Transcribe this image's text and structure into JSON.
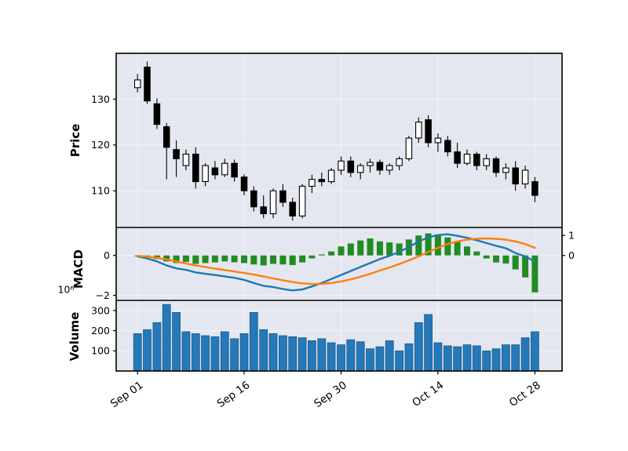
{
  "figure": {
    "bg": "#ffffff",
    "panel_bg": "#e4e7f0",
    "colors": {
      "candle_up_fill": "#ffffff",
      "candle_down_fill": "#000000",
      "candle_edge": "#000000",
      "volume_bar": "#2579b8",
      "volume_edge": "#1b5a8a",
      "hist_bar": "#238b23",
      "macd_line": "#1f77b4",
      "signal_line": "#ff7f0e",
      "grid": "#ffffff",
      "spine": "#000000",
      "text": "#000000"
    }
  },
  "x_axis": {
    "n": 42,
    "tick_indices": [
      0,
      11,
      21,
      31,
      41
    ],
    "tick_labels": [
      "Sep 01",
      "Sep 16",
      "Sep 30",
      "Oct 14",
      "Oct 28"
    ]
  },
  "chart_data": [
    {
      "type": "candlestick",
      "panel": "price",
      "ylabel": "Price",
      "ylim": [
        102,
        140
      ],
      "yticks": [
        130,
        120,
        110
      ],
      "ytick_labels": [
        "130",
        "120",
        "110"
      ],
      "dates": [
        "Sep 01",
        "Sep 02",
        "Sep 03",
        "Sep 06",
        "Sep 07",
        "Sep 08",
        "Sep 09",
        "Sep 10",
        "Sep 13",
        "Sep 14",
        "Sep 15",
        "Sep 16",
        "Sep 17",
        "Sep 20",
        "Sep 21",
        "Sep 22",
        "Sep 23",
        "Sep 24",
        "Sep 27",
        "Sep 28",
        "Sep 29",
        "Sep 30",
        "Oct 01",
        "Oct 04",
        "Oct 05",
        "Oct 06",
        "Oct 07",
        "Oct 08",
        "Oct 11",
        "Oct 12",
        "Oct 13",
        "Oct 14",
        "Oct 15",
        "Oct 18",
        "Oct 19",
        "Oct 20",
        "Oct 21",
        "Oct 22",
        "Oct 25",
        "Oct 26",
        "Oct 27",
        "Oct 28"
      ],
      "ohlc": [
        [
          132.5,
          135.5,
          131.5,
          134.2
        ],
        [
          137.0,
          138.2,
          129.0,
          129.6
        ],
        [
          129.0,
          130.2,
          123.5,
          124.5
        ],
        [
          124.0,
          124.8,
          112.5,
          119.5
        ],
        [
          119.0,
          121.0,
          113.0,
          117.0
        ],
        [
          115.5,
          119.0,
          114.5,
          118.0
        ],
        [
          118.0,
          119.5,
          110.5,
          112.0
        ],
        [
          112.0,
          116.0,
          111.0,
          115.5
        ],
        [
          115.0,
          116.5,
          112.5,
          113.5
        ],
        [
          113.5,
          117.0,
          113.0,
          116.0
        ],
        [
          116.0,
          116.8,
          112.0,
          113.0
        ],
        [
          113.0,
          113.6,
          109.0,
          110.0
        ],
        [
          110.0,
          111.0,
          105.5,
          106.5
        ],
        [
          106.5,
          109.0,
          104.0,
          105.0
        ],
        [
          105.0,
          110.5,
          104.0,
          110.0
        ],
        [
          110.0,
          111.5,
          106.5,
          107.5
        ],
        [
          107.5,
          108.5,
          103.5,
          104.5
        ],
        [
          104.5,
          111.5,
          104.0,
          111.0
        ],
        [
          111.0,
          113.5,
          109.5,
          112.5
        ],
        [
          112.5,
          114.0,
          111.0,
          112.0
        ],
        [
          112.0,
          115.0,
          111.5,
          114.5
        ],
        [
          114.5,
          117.5,
          113.5,
          116.5
        ],
        [
          116.5,
          117.5,
          113.0,
          114.0
        ],
        [
          114.0,
          116.0,
          112.5,
          115.5
        ],
        [
          115.5,
          117.0,
          114.0,
          116.2
        ],
        [
          116.2,
          116.8,
          113.5,
          114.5
        ],
        [
          114.5,
          116.0,
          113.5,
          115.5
        ],
        [
          115.5,
          117.5,
          114.5,
          117.0
        ],
        [
          117.0,
          122.0,
          116.5,
          121.5
        ],
        [
          121.5,
          126.0,
          120.5,
          125.0
        ],
        [
          125.5,
          126.5,
          119.5,
          120.5
        ],
        [
          120.5,
          122.5,
          118.5,
          121.5
        ],
        [
          121.0,
          122.0,
          117.5,
          118.5
        ],
        [
          118.5,
          120.5,
          115.0,
          116.0
        ],
        [
          116.0,
          119.0,
          115.5,
          118.0
        ],
        [
          118.0,
          118.5,
          114.5,
          115.5
        ],
        [
          115.5,
          118.0,
          114.5,
          117.0
        ],
        [
          117.0,
          117.5,
          113.0,
          114.0
        ],
        [
          114.0,
          116.0,
          112.5,
          115.0
        ],
        [
          115.0,
          116.5,
          110.0,
          111.5
        ],
        [
          111.5,
          115.5,
          110.5,
          114.5
        ],
        [
          112.0,
          113.0,
          107.5,
          109.0
        ]
      ]
    },
    {
      "type": "macd",
      "panel": "macd",
      "ylabel": "MACD",
      "offset_text": "10⁶",
      "ylim": [
        -2.25,
        1.4
      ],
      "yticks": [
        0,
        -2
      ],
      "ytick_labels": [
        "0",
        "−2"
      ],
      "right_yticks": [
        1,
        0
      ],
      "right_ytick_labels": [
        "1",
        "0"
      ],
      "histogram": [
        -0.02,
        -0.08,
        -0.18,
        -0.3,
        -0.38,
        -0.32,
        -0.42,
        -0.38,
        -0.35,
        -0.3,
        -0.34,
        -0.38,
        -0.45,
        -0.5,
        -0.42,
        -0.45,
        -0.48,
        -0.35,
        -0.15,
        0.05,
        0.2,
        0.45,
        0.6,
        0.75,
        0.85,
        0.7,
        0.65,
        0.6,
        0.8,
        1.0,
        1.1,
        1.05,
        0.9,
        0.7,
        0.45,
        0.2,
        -0.15,
        -0.35,
        -0.4,
        -0.7,
        -1.1,
        -1.85
      ],
      "series": [
        {
          "name": "macd",
          "color": "#1f77b4",
          "values": [
            -0.05,
            -0.15,
            -0.3,
            -0.5,
            -0.65,
            -0.72,
            -0.85,
            -0.92,
            -0.98,
            -1.05,
            -1.12,
            -1.22,
            -1.38,
            -1.52,
            -1.58,
            -1.68,
            -1.75,
            -1.7,
            -1.55,
            -1.38,
            -1.18,
            -0.98,
            -0.78,
            -0.58,
            -0.38,
            -0.18,
            -0.02,
            0.18,
            0.42,
            0.7,
            0.9,
            1.02,
            1.06,
            0.98,
            0.88,
            0.76,
            0.62,
            0.48,
            0.36,
            0.12,
            -0.05,
            -0.3
          ]
        },
        {
          "name": "signal",
          "color": "#ff7f0e",
          "values": [
            -0.02,
            -0.06,
            -0.12,
            -0.2,
            -0.3,
            -0.4,
            -0.5,
            -0.58,
            -0.66,
            -0.73,
            -0.8,
            -0.88,
            -0.96,
            -1.05,
            -1.15,
            -1.24,
            -1.33,
            -1.4,
            -1.43,
            -1.42,
            -1.38,
            -1.3,
            -1.2,
            -1.07,
            -0.92,
            -0.76,
            -0.6,
            -0.43,
            -0.25,
            -0.05,
            0.17,
            0.38,
            0.57,
            0.7,
            0.79,
            0.84,
            0.85,
            0.83,
            0.79,
            0.7,
            0.57,
            0.38
          ]
        }
      ]
    },
    {
      "type": "bar",
      "panel": "volume",
      "ylabel": "Volume",
      "ylim": [
        0,
        350
      ],
      "yticks": [
        300,
        200,
        100
      ],
      "ytick_labels": [
        "300",
        "200",
        "100"
      ],
      "values": [
        185,
        205,
        240,
        330,
        290,
        195,
        185,
        175,
        170,
        195,
        160,
        185,
        290,
        205,
        185,
        175,
        170,
        165,
        150,
        160,
        140,
        130,
        155,
        145,
        110,
        120,
        150,
        100,
        135,
        240,
        280,
        140,
        125,
        120,
        130,
        125,
        100,
        110,
        130,
        130,
        165,
        195
      ]
    }
  ]
}
